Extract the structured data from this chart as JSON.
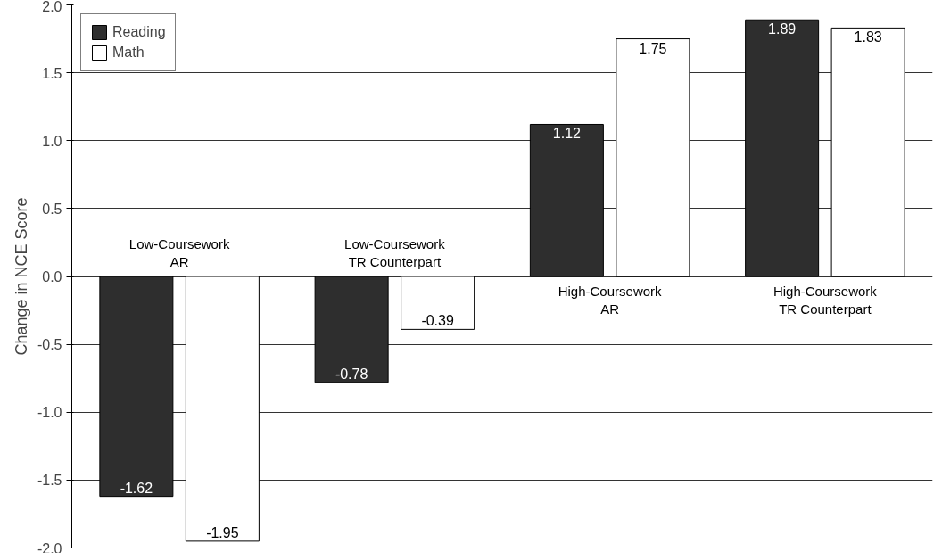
{
  "chart_data": {
    "type": "bar",
    "ylabel": "Change in NCE Score",
    "categories": [
      "Low-Coursework AR",
      "Low-Coursework TR Counterpart",
      "High-Coursework AR",
      "High-Coursework TR Counterpart"
    ],
    "series": [
      {
        "name": "Reading",
        "color": "#2e2e2e",
        "values": [
          -1.62,
          -0.78,
          1.12,
          1.89
        ]
      },
      {
        "name": "Math",
        "color": "#ffffff",
        "values": [
          -1.95,
          -0.39,
          1.75,
          1.83
        ]
      }
    ],
    "ylim": [
      -2,
      2
    ],
    "yticks": [
      {
        "value": -2,
        "label": "-2.0"
      },
      {
        "value": -1.5,
        "label": "-1.5"
      },
      {
        "value": -1,
        "label": "-1.0"
      },
      {
        "value": -0.5,
        "label": "-0.5"
      },
      {
        "value": 0,
        "label": "0.0"
      },
      {
        "value": 0.5,
        "label": "0.5"
      },
      {
        "value": 1,
        "label": "1.0"
      },
      {
        "value": 1.5,
        "label": "1.5"
      },
      {
        "value": 2,
        "label": "2.0"
      }
    ],
    "grid": "y",
    "legend": "top left",
    "data_labels": true,
    "tick_labels": "y"
  }
}
